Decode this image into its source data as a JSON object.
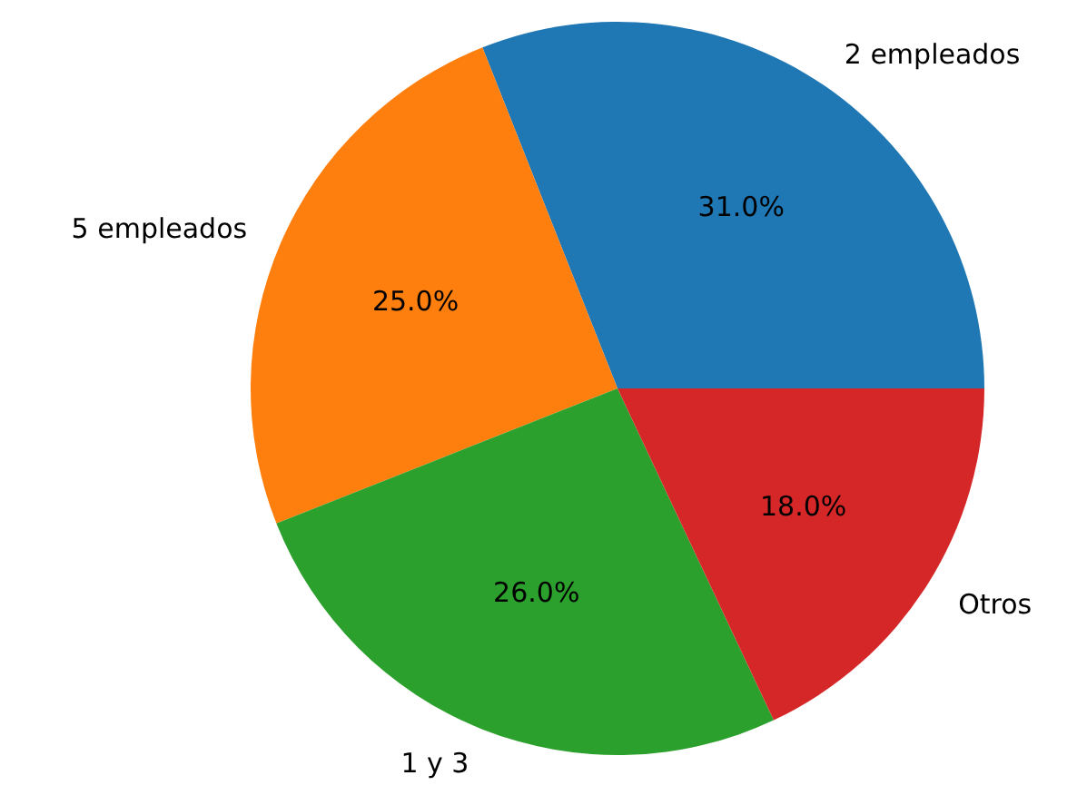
{
  "chart_data": {
    "type": "pie",
    "categories": [
      "2 empleados",
      "5 empleados",
      "1 y 3",
      "Otros"
    ],
    "values": [
      31,
      25,
      26,
      18
    ],
    "colors": [
      "#1f77b4",
      "#ff7f0e",
      "#2ca02c",
      "#d62728"
    ],
    "value_labels": [
      "31.0%",
      "25.0%",
      "26.0%",
      "18.0%"
    ]
  }
}
